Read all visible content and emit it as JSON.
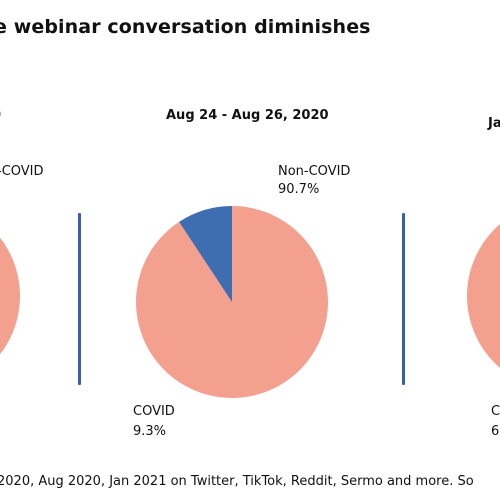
{
  "title": "e webinar conversation diminishes",
  "footer": "2020, Aug 2020, Jan 2021 on Twitter, TikTok, Reddit, Sermo and more. So",
  "colors": {
    "noncovid": "#f4a08e",
    "covid": "#3f6eb0",
    "divider": "#3a5fb0"
  },
  "chart_data": [
    {
      "type": "pie",
      "title": "0",
      "labels": [
        "Non-COVID",
        "COVID"
      ],
      "label_texts": [
        "-COVID",
        ""
      ],
      "values": [
        null,
        null
      ]
    },
    {
      "type": "pie",
      "title": "Aug 24 - Aug 26, 2020",
      "labels": [
        "Non-COVID",
        "COVID"
      ],
      "values": [
        90.7,
        9.3
      ],
      "value_texts": [
        "90.7%",
        "9.3%"
      ]
    },
    {
      "type": "pie",
      "title": "Ja",
      "labels": [
        "Non-COVID",
        "COVID"
      ],
      "label_texts": [
        "",
        "C"
      ],
      "value_texts": [
        "",
        "6"
      ],
      "values": [
        null,
        null
      ]
    }
  ]
}
